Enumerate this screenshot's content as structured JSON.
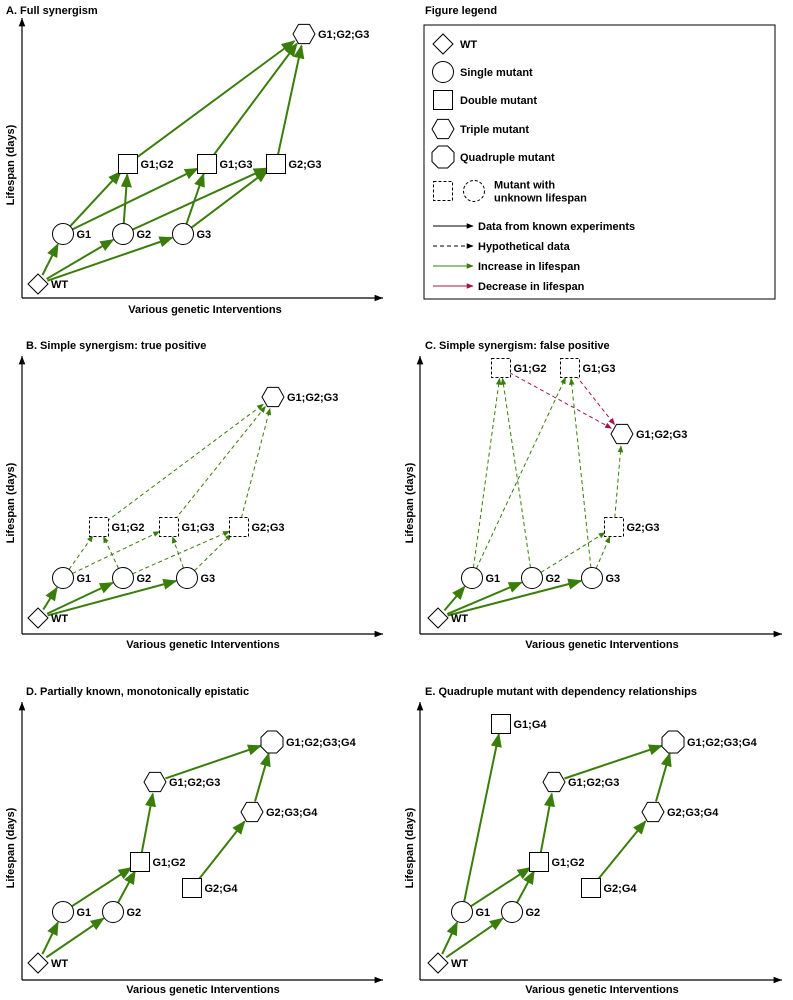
{
  "panels": [
    {
      "title": "A. Full synergism",
      "y_label": "Lifespan (days)",
      "x_label": "Various genetic Interventions",
      "nodes": [
        {
          "id": "wt",
          "shape": "diamond",
          "label": "WT",
          "known": true
        },
        {
          "id": "g1",
          "shape": "circle",
          "label": "G1",
          "known": true
        },
        {
          "id": "g2",
          "shape": "circle",
          "label": "G2",
          "known": true
        },
        {
          "id": "g3",
          "shape": "circle",
          "label": "G3",
          "known": true
        },
        {
          "id": "g12",
          "shape": "square",
          "label": "G1;G2",
          "known": true
        },
        {
          "id": "g13",
          "shape": "square",
          "label": "G1;G3",
          "known": true
        },
        {
          "id": "g23",
          "shape": "square",
          "label": "G2;G3",
          "known": true
        },
        {
          "id": "g123",
          "shape": "hexagon",
          "label": "G1;G2;G3",
          "known": true
        }
      ],
      "edges": [
        {
          "from": "wt",
          "to": "g1",
          "kind": "increase",
          "style": "solid"
        },
        {
          "from": "wt",
          "to": "g2",
          "kind": "increase",
          "style": "solid"
        },
        {
          "from": "wt",
          "to": "g3",
          "kind": "increase",
          "style": "solid"
        },
        {
          "from": "g1",
          "to": "g12",
          "kind": "increase",
          "style": "solid"
        },
        {
          "from": "g1",
          "to": "g13",
          "kind": "increase",
          "style": "solid"
        },
        {
          "from": "g2",
          "to": "g12",
          "kind": "increase",
          "style": "solid"
        },
        {
          "from": "g2",
          "to": "g23",
          "kind": "increase",
          "style": "solid"
        },
        {
          "from": "g3",
          "to": "g13",
          "kind": "increase",
          "style": "solid"
        },
        {
          "from": "g3",
          "to": "g23",
          "kind": "increase",
          "style": "solid"
        },
        {
          "from": "g12",
          "to": "g123",
          "kind": "increase",
          "style": "solid"
        },
        {
          "from": "g13",
          "to": "g123",
          "kind": "increase",
          "style": "solid"
        },
        {
          "from": "g23",
          "to": "g123",
          "kind": "increase",
          "style": "solid"
        }
      ]
    },
    {
      "title": "B. Simple synergism: true positive",
      "y_label": "Lifespan (days)",
      "x_label": "Various genetic Interventions",
      "nodes": [
        {
          "id": "wt",
          "shape": "diamond",
          "label": "WT",
          "known": true
        },
        {
          "id": "g1",
          "shape": "circle",
          "label": "G1",
          "known": true
        },
        {
          "id": "g2",
          "shape": "circle",
          "label": "G2",
          "known": true
        },
        {
          "id": "g3",
          "shape": "circle",
          "label": "G3",
          "known": true
        },
        {
          "id": "g12",
          "shape": "square",
          "label": "G1;G2",
          "known": false
        },
        {
          "id": "g13",
          "shape": "square",
          "label": "G1;G3",
          "known": false
        },
        {
          "id": "g23",
          "shape": "square",
          "label": "G2;G3",
          "known": false
        },
        {
          "id": "g123",
          "shape": "hexagon",
          "label": "G1;G2;G3",
          "known": true
        }
      ],
      "edges": [
        {
          "from": "wt",
          "to": "g1",
          "kind": "increase",
          "style": "solid"
        },
        {
          "from": "wt",
          "to": "g2",
          "kind": "increase",
          "style": "solid"
        },
        {
          "from": "wt",
          "to": "g3",
          "kind": "increase",
          "style": "solid"
        },
        {
          "from": "g1",
          "to": "g12",
          "kind": "increase",
          "style": "dashed"
        },
        {
          "from": "g1",
          "to": "g13",
          "kind": "increase",
          "style": "dashed"
        },
        {
          "from": "g2",
          "to": "g12",
          "kind": "increase",
          "style": "dashed"
        },
        {
          "from": "g2",
          "to": "g23",
          "kind": "increase",
          "style": "dashed"
        },
        {
          "from": "g3",
          "to": "g13",
          "kind": "increase",
          "style": "dashed"
        },
        {
          "from": "g3",
          "to": "g23",
          "kind": "increase",
          "style": "dashed"
        },
        {
          "from": "g12",
          "to": "g123",
          "kind": "increase",
          "style": "dashed"
        },
        {
          "from": "g13",
          "to": "g123",
          "kind": "increase",
          "style": "dashed"
        },
        {
          "from": "g23",
          "to": "g123",
          "kind": "increase",
          "style": "dashed"
        }
      ]
    },
    {
      "title": "C. Simple synergism: false positive",
      "y_label": "Lifespan (days)",
      "x_label": "Various genetic Interventions",
      "nodes": [
        {
          "id": "wt",
          "shape": "diamond",
          "label": "WT",
          "known": true
        },
        {
          "id": "g1",
          "shape": "circle",
          "label": "G1",
          "known": true
        },
        {
          "id": "g2",
          "shape": "circle",
          "label": "G2",
          "known": true
        },
        {
          "id": "g3",
          "shape": "circle",
          "label": "G3",
          "known": true
        },
        {
          "id": "g12",
          "shape": "square",
          "label": "G1;G2",
          "known": false
        },
        {
          "id": "g13",
          "shape": "square",
          "label": "G1;G3",
          "known": false
        },
        {
          "id": "g23",
          "shape": "square",
          "label": "G2;G3",
          "known": false
        },
        {
          "id": "g123",
          "shape": "hexagon",
          "label": "G1;G2;G3",
          "known": true
        }
      ],
      "edges": [
        {
          "from": "wt",
          "to": "g1",
          "kind": "increase",
          "style": "solid"
        },
        {
          "from": "wt",
          "to": "g2",
          "kind": "increase",
          "style": "solid"
        },
        {
          "from": "wt",
          "to": "g3",
          "kind": "increase",
          "style": "solid"
        },
        {
          "from": "g1",
          "to": "g12",
          "kind": "increase",
          "style": "dashed"
        },
        {
          "from": "g1",
          "to": "g13",
          "kind": "increase",
          "style": "dashed"
        },
        {
          "from": "g2",
          "to": "g12",
          "kind": "increase",
          "style": "dashed"
        },
        {
          "from": "g2",
          "to": "g23",
          "kind": "increase",
          "style": "dashed"
        },
        {
          "from": "g3",
          "to": "g13",
          "kind": "increase",
          "style": "dashed"
        },
        {
          "from": "g3",
          "to": "g23",
          "kind": "increase",
          "style": "dashed"
        },
        {
          "from": "g12",
          "to": "g123",
          "kind": "decrease",
          "style": "dashed"
        },
        {
          "from": "g13",
          "to": "g123",
          "kind": "decrease",
          "style": "dashed"
        },
        {
          "from": "g23",
          "to": "g123",
          "kind": "increase",
          "style": "dashed"
        }
      ]
    },
    {
      "title": "D. Partially known, monotonically epistatic",
      "y_label": "Lifespan (days)",
      "x_label": "Various genetic Interventions",
      "nodes": [
        {
          "id": "wt",
          "shape": "diamond",
          "label": "WT",
          "known": true
        },
        {
          "id": "g1",
          "shape": "circle",
          "label": "G1",
          "known": true
        },
        {
          "id": "g2",
          "shape": "circle",
          "label": "G2",
          "known": true
        },
        {
          "id": "g12",
          "shape": "square",
          "label": "G1;G2",
          "known": true
        },
        {
          "id": "g24",
          "shape": "square",
          "label": "G2;G4",
          "known": true
        },
        {
          "id": "g123",
          "shape": "hexagon",
          "label": "G1;G2;G3",
          "known": true
        },
        {
          "id": "g234",
          "shape": "hexagon",
          "label": "G2;G3;G4",
          "known": true
        },
        {
          "id": "g1234",
          "shape": "octagon",
          "label": "G1;G2;G3;G4",
          "known": true
        }
      ],
      "edges": [
        {
          "from": "wt",
          "to": "g1",
          "kind": "increase",
          "style": "solid"
        },
        {
          "from": "wt",
          "to": "g2",
          "kind": "increase",
          "style": "solid"
        },
        {
          "from": "g1",
          "to": "g12",
          "kind": "increase",
          "style": "solid"
        },
        {
          "from": "g2",
          "to": "g12",
          "kind": "increase",
          "style": "solid"
        },
        {
          "from": "g12",
          "to": "g123",
          "kind": "increase",
          "style": "solid"
        },
        {
          "from": "g123",
          "to": "g1234",
          "kind": "increase",
          "style": "solid"
        },
        {
          "from": "g24",
          "to": "g234",
          "kind": "increase",
          "style": "solid"
        },
        {
          "from": "g234",
          "to": "g1234",
          "kind": "increase",
          "style": "solid"
        }
      ]
    },
    {
      "title": "E. Quadruple mutant with dependency relationships",
      "y_label": "Lifespan (days)",
      "x_label": "Various genetic Interventions",
      "nodes": [
        {
          "id": "wt",
          "shape": "diamond",
          "label": "WT",
          "known": true
        },
        {
          "id": "g1",
          "shape": "circle",
          "label": "G1",
          "known": true
        },
        {
          "id": "g2",
          "shape": "circle",
          "label": "G2",
          "known": true
        },
        {
          "id": "g14",
          "shape": "square",
          "label": "G1;G4",
          "known": true
        },
        {
          "id": "g12",
          "shape": "square",
          "label": "G1;G2",
          "known": true
        },
        {
          "id": "g24",
          "shape": "square",
          "label": "G2;G4",
          "known": true
        },
        {
          "id": "g123",
          "shape": "hexagon",
          "label": "G1;G2;G3",
          "known": true
        },
        {
          "id": "g234",
          "shape": "hexagon",
          "label": "G2;G3;G4",
          "known": true
        },
        {
          "id": "g1234",
          "shape": "octagon",
          "label": "G1;G2;G3;G4",
          "known": true
        }
      ],
      "edges": [
        {
          "from": "wt",
          "to": "g1",
          "kind": "increase",
          "style": "solid"
        },
        {
          "from": "wt",
          "to": "g2",
          "kind": "increase",
          "style": "solid"
        },
        {
          "from": "g1",
          "to": "g14",
          "kind": "increase",
          "style": "solid"
        },
        {
          "from": "g1",
          "to": "g12",
          "kind": "increase",
          "style": "solid"
        },
        {
          "from": "g2",
          "to": "g12",
          "kind": "increase",
          "style": "solid"
        },
        {
          "from": "g12",
          "to": "g123",
          "kind": "increase",
          "style": "solid"
        },
        {
          "from": "g123",
          "to": "g1234",
          "kind": "increase",
          "style": "solid"
        },
        {
          "from": "g24",
          "to": "g234",
          "kind": "increase",
          "style": "solid"
        },
        {
          "from": "g234",
          "to": "g1234",
          "kind": "increase",
          "style": "solid"
        }
      ]
    }
  ],
  "legend": {
    "title": "Figure legend",
    "items": [
      {
        "symbol": "diamond",
        "label": "WT"
      },
      {
        "symbol": "circle",
        "label": "Single mutant"
      },
      {
        "symbol": "square",
        "label": "Double mutant"
      },
      {
        "symbol": "hexagon",
        "label": "Triple mutant"
      },
      {
        "symbol": "octagon",
        "label": "Quadruple mutant"
      },
      {
        "symbol": "dashed-square-circle",
        "label": "Mutant with\nunknown lifespan"
      },
      {
        "symbol": "arrow-solid-black",
        "label": "Data from known experiments"
      },
      {
        "symbol": "arrow-dashed-black",
        "label": "Hypothetical data"
      },
      {
        "symbol": "arrow-green",
        "label": "Increase in lifespan"
      },
      {
        "symbol": "arrow-red",
        "label": "Decrease in lifespan"
      }
    ]
  },
  "colors": {
    "increase": "#3a7d0a",
    "decrease": "#a3174a",
    "ink": "#000000"
  }
}
